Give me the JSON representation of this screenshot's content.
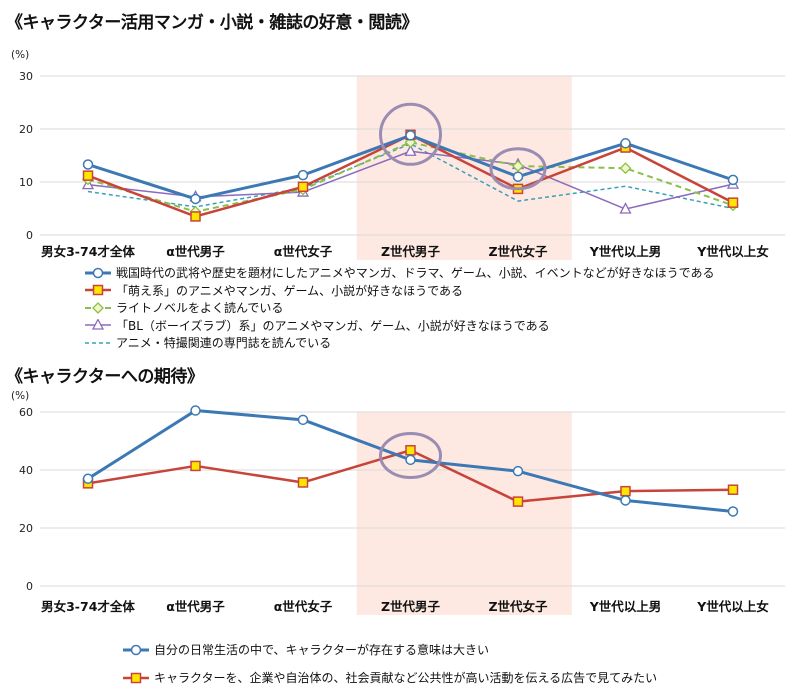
{
  "chart_data": [
    {
      "type": "line",
      "title": "《キャラクター活用マンガ・小説・雑誌の好意・閲読》",
      "unit": "(%)",
      "categories": [
        "男女3-74才全体",
        "α世代男子",
        "α世代女子",
        "Z世代男子",
        "Z世代女子",
        "Y世代以上男",
        "Y世代以上女"
      ],
      "ylim": [
        0,
        30
      ],
      "yticks": [
        "0",
        "10",
        "20",
        "30"
      ],
      "yticks_values": [
        0,
        10,
        20,
        30
      ],
      "grid": true,
      "highlight": [
        "Z世代男子",
        "Z世代女子"
      ],
      "legend_position": "bottom",
      "series": [
        {
          "name": "戦国時代の武将や歴史を題材にしたアニメやマンガ、ドラマ、ゲーム、小説、イベントなどが好きなほうである",
          "color": "#3c78b4",
          "marker": "circle",
          "dash": "solid",
          "width": 3,
          "values": [
            13.3,
            6.8,
            11.3,
            18.8,
            11.0,
            17.3,
            10.4
          ]
        },
        {
          "name": "「萌え系」のアニメやマンガ、ゲーム、小説が好きなほうである",
          "color": "#c8443a",
          "marker": "square",
          "dash": "solid",
          "width": 2.5,
          "values": [
            11.2,
            3.5,
            9.1,
            18.9,
            8.7,
            16.5,
            6.1
          ]
        },
        {
          "name": "ライトノベルをよく読んでいる",
          "color": "#8cbf4a",
          "marker": "diamond",
          "dash": "dashed",
          "width": 2,
          "values": [
            10.5,
            4.4,
            8.6,
            17.5,
            13.0,
            12.6,
            5.6
          ]
        },
        {
          "name": "「BL（ボーイズラブ）系」のアニメやマンガ、ゲーム、小説が好きなほうである",
          "color": "#8a6bbd",
          "marker": "triangle",
          "dash": "solid",
          "width": 1.5,
          "values": [
            9.5,
            7.2,
            8.1,
            15.8,
            13.3,
            4.9,
            9.6
          ]
        },
        {
          "name": "アニメ・特撮関連の専門誌を読んでいる",
          "color": "#3aa0b8",
          "marker": "none",
          "dash": "dashed-fine",
          "width": 1.5,
          "values": [
            8.2,
            5.3,
            8.9,
            17.2,
            6.4,
            9.2,
            5.0
          ]
        }
      ]
    },
    {
      "type": "line",
      "title": "《キャラクターへの期待》",
      "unit": "(%)",
      "categories": [
        "男女3-74才全体",
        "α世代男子",
        "α世代女子",
        "Z世代男子",
        "Z世代女子",
        "Y世代以上男",
        "Y世代以上女"
      ],
      "ylim": [
        0,
        60
      ],
      "yticks": [
        "0",
        "20",
        "40",
        "60"
      ],
      "yticks_values": [
        0,
        20,
        40,
        60
      ],
      "grid": true,
      "highlight": [
        "Z世代男子",
        "Z世代女子"
      ],
      "legend_position": "bottom",
      "series": [
        {
          "name": "自分の日常生活の中で、キャラクターが存在する意味は大きい",
          "color": "#3c78b4",
          "marker": "circle",
          "dash": "solid",
          "width": 3,
          "values": [
            37.0,
            60.5,
            57.3,
            43.5,
            39.6,
            29.5,
            25.7
          ]
        },
        {
          "name": "キャラクターを、企業や自治体の、社会貢献など公共性が高い活動を伝える広告で見てみたい",
          "color": "#c8443a",
          "marker": "square",
          "dash": "solid",
          "width": 2.5,
          "values": [
            35.4,
            41.4,
            35.7,
            46.8,
            29.1,
            32.7,
            33.2
          ]
        }
      ]
    }
  ]
}
